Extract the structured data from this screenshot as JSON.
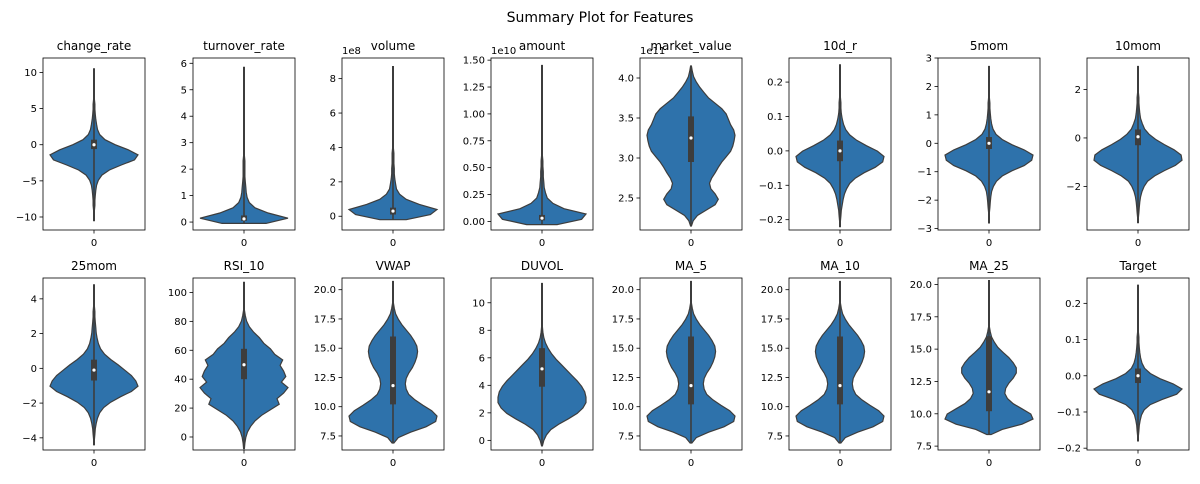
{
  "chart_data": {
    "title": "Summary Plot for Features",
    "type": "violin",
    "panels": [
      {
        "title": "change_rate",
        "ylim": [
          -11.8,
          12.0
        ],
        "yticks": [
          -10,
          -5,
          0,
          5,
          10
        ],
        "tick_labels": [
          "−10",
          "−5",
          "0",
          "5",
          "10"
        ],
        "offset": "",
        "category": "0",
        "range": [
          -10.5,
          10.5
        ],
        "median": 0,
        "q1": -0.6,
        "q3": 0.7,
        "kde": [
          0.01,
          0.01,
          0.01,
          0.02,
          0.02,
          0.03,
          0.04,
          0.06,
          0.1,
          0.18,
          0.35,
          0.62,
          0.92,
          1.0,
          0.78,
          0.48,
          0.25,
          0.13,
          0.08,
          0.06,
          0.04,
          0.03,
          0.02,
          0.02,
          0.01,
          0.01,
          0.01,
          0.01,
          0.01,
          0.01,
          0.01
        ]
      },
      {
        "title": "turnover_rate",
        "ylim": [
          -0.3,
          6.2
        ],
        "yticks": [
          0,
          1,
          2,
          3,
          4,
          5,
          6
        ],
        "tick_labels": [
          "0",
          "1",
          "2",
          "3",
          "4",
          "5",
          "6"
        ],
        "offset": "",
        "category": "0",
        "range": [
          -0.05,
          5.85
        ],
        "median": 0.12,
        "q1": 0.05,
        "q3": 0.25,
        "kde": [
          0.5,
          1.0,
          0.55,
          0.25,
          0.12,
          0.07,
          0.05,
          0.04,
          0.03,
          0.02,
          0.02,
          0.02,
          0.02,
          0.01,
          0.01,
          0.01,
          0.01,
          0.01,
          0.01,
          0.01,
          0.01,
          0.01,
          0.01,
          0.01,
          0.01,
          0.01,
          0.01,
          0.01,
          0.01,
          0.01,
          0.01
        ]
      },
      {
        "title": "volume",
        "ylim": [
          -0.8,
          9.2
        ],
        "yticks": [
          0,
          2,
          4,
          6,
          8
        ],
        "tick_labels": [
          "0",
          "2",
          "4",
          "6",
          "8"
        ],
        "offset": "1e8",
        "category": "0",
        "range": [
          -0.2,
          8.7
        ],
        "median": 0.3,
        "q1": 0.1,
        "q3": 0.5,
        "kde": [
          0.3,
          0.85,
          1.0,
          0.6,
          0.3,
          0.15,
          0.08,
          0.06,
          0.04,
          0.03,
          0.03,
          0.02,
          0.02,
          0.02,
          0.01,
          0.01,
          0.01,
          0.01,
          0.01,
          0.01,
          0.01,
          0.01,
          0.01,
          0.01,
          0.01,
          0.01,
          0.01,
          0.01,
          0.01,
          0.01,
          0.01
        ]
      },
      {
        "title": "amount",
        "ylim": [
          -0.08,
          1.52
        ],
        "yticks": [
          0.0,
          0.25,
          0.5,
          0.75,
          1.0,
          1.25,
          1.5
        ],
        "tick_labels": [
          "0.00",
          "0.25",
          "0.50",
          "0.75",
          "1.00",
          "1.25",
          "1.50"
        ],
        "offset": "1e10",
        "category": "0",
        "range": [
          -0.03,
          1.45
        ],
        "median": 0.03,
        "q1": 0.01,
        "q3": 0.06,
        "kde": [
          0.35,
          0.9,
          1.0,
          0.5,
          0.25,
          0.12,
          0.08,
          0.05,
          0.04,
          0.03,
          0.03,
          0.02,
          0.02,
          0.01,
          0.01,
          0.01,
          0.01,
          0.01,
          0.01,
          0.01,
          0.01,
          0.01,
          0.01,
          0.01,
          0.01,
          0.01,
          0.01,
          0.01,
          0.01,
          0.01,
          0.01
        ]
      },
      {
        "title": "market_value",
        "ylim": [
          2.1,
          4.25
        ],
        "yticks": [
          2.5,
          3.0,
          3.5,
          4.0
        ],
        "tick_labels": [
          "2.5",
          "3.0",
          "3.5",
          "4.0"
        ],
        "offset": "1e11",
        "category": "0",
        "range": [
          2.15,
          4.15
        ],
        "median": 3.25,
        "q1": 2.95,
        "q3": 3.52,
        "kde": [
          0.01,
          0.05,
          0.15,
          0.35,
          0.55,
          0.62,
          0.55,
          0.45,
          0.42,
          0.47,
          0.55,
          0.62,
          0.7,
          0.8,
          0.9,
          0.95,
          0.98,
          1.0,
          0.97,
          0.9,
          0.85,
          0.8,
          0.7,
          0.55,
          0.4,
          0.3,
          0.2,
          0.12,
          0.06,
          0.03,
          0.01
        ]
      },
      {
        "title": "10d_r",
        "ylim": [
          -0.23,
          0.27
        ],
        "yticks": [
          -0.2,
          -0.1,
          0.0,
          0.1,
          0.2
        ],
        "tick_labels": [
          "−0.2",
          "−0.1",
          "0.0",
          "0.1",
          "0.2"
        ],
        "offset": "",
        "category": "0",
        "range": [
          -0.22,
          0.25
        ],
        "median": 0.0,
        "q1": -0.03,
        "q3": 0.03,
        "kde": [
          0.01,
          0.01,
          0.02,
          0.03,
          0.05,
          0.07,
          0.1,
          0.15,
          0.22,
          0.35,
          0.55,
          0.8,
          0.97,
          1.0,
          0.85,
          0.6,
          0.38,
          0.22,
          0.13,
          0.08,
          0.05,
          0.03,
          0.02,
          0.02,
          0.01,
          0.01,
          0.01,
          0.01,
          0.01,
          0.01,
          0.01
        ]
      },
      {
        "title": "5mom",
        "ylim": [
          -3.05,
          3.0
        ],
        "yticks": [
          -3,
          -2,
          -1,
          0,
          1,
          2,
          3
        ],
        "tick_labels": [
          "−3",
          "−2",
          "−1",
          "0",
          "1",
          "2",
          "3"
        ],
        "offset": "",
        "category": "0",
        "range": [
          -2.8,
          2.7
        ],
        "median": 0.0,
        "q1": -0.2,
        "q3": 0.22,
        "kde": [
          0.01,
          0.01,
          0.01,
          0.02,
          0.03,
          0.04,
          0.06,
          0.1,
          0.17,
          0.3,
          0.52,
          0.8,
          0.97,
          1.0,
          0.8,
          0.52,
          0.3,
          0.16,
          0.09,
          0.06,
          0.04,
          0.03,
          0.02,
          0.02,
          0.01,
          0.01,
          0.01,
          0.01,
          0.01,
          0.01,
          0.01
        ]
      },
      {
        "title": "10mom",
        "ylim": [
          -3.8,
          3.3
        ],
        "yticks": [
          -2,
          0,
          2
        ],
        "tick_labels": [
          "−2",
          "0",
          "2"
        ],
        "offset": "",
        "category": "0",
        "range": [
          -3.5,
          2.95
        ],
        "median": 0.05,
        "q1": -0.3,
        "q3": 0.35,
        "kde": [
          0.01,
          0.01,
          0.02,
          0.03,
          0.04,
          0.06,
          0.09,
          0.14,
          0.22,
          0.38,
          0.6,
          0.85,
          1.0,
          0.98,
          0.82,
          0.6,
          0.4,
          0.25,
          0.15,
          0.1,
          0.06,
          0.04,
          0.03,
          0.02,
          0.02,
          0.01,
          0.01,
          0.01,
          0.01,
          0.01,
          0.01
        ]
      },
      {
        "title": "25mom",
        "ylim": [
          -4.7,
          5.2
        ],
        "yticks": [
          -4,
          -2,
          0,
          2,
          4
        ],
        "tick_labels": [
          "−4",
          "−2",
          "0",
          "2",
          "4"
        ],
        "offset": "",
        "category": "0",
        "range": [
          -4.4,
          4.8
        ],
        "median": -0.1,
        "q1": -0.7,
        "q3": 0.5,
        "kde": [
          0.01,
          0.01,
          0.02,
          0.03,
          0.05,
          0.08,
          0.13,
          0.22,
          0.38,
          0.6,
          0.85,
          1.0,
          0.95,
          0.85,
          0.7,
          0.55,
          0.38,
          0.24,
          0.15,
          0.1,
          0.07,
          0.05,
          0.04,
          0.03,
          0.02,
          0.02,
          0.01,
          0.01,
          0.01,
          0.01,
          0.01
        ]
      },
      {
        "title": "RSI_10",
        "ylim": [
          -9,
          110
        ],
        "yticks": [
          0,
          20,
          40,
          60,
          80,
          100
        ],
        "tick_labels": [
          "0",
          "20",
          "40",
          "60",
          "80",
          "100"
        ],
        "offset": "",
        "category": "0",
        "range": [
          -8,
          107
        ],
        "median": 50,
        "q1": 40,
        "q3": 61,
        "kde": [
          0.01,
          0.02,
          0.04,
          0.08,
          0.15,
          0.25,
          0.4,
          0.6,
          0.8,
          0.75,
          0.9,
          1.0,
          0.85,
          0.95,
          0.9,
          0.82,
          0.88,
          0.7,
          0.6,
          0.45,
          0.35,
          0.22,
          0.12,
          0.06,
          0.03,
          0.01,
          0.01,
          0.01,
          0.01,
          0.01,
          0.01
        ]
      },
      {
        "title": "VWAP",
        "ylim": [
          6.3,
          21.0
        ],
        "yticks": [
          7.5,
          10.0,
          12.5,
          15.0,
          17.5,
          20.0
        ],
        "tick_labels": [
          "7.5",
          "10.0",
          "12.5",
          "15.0",
          "17.5",
          "20.0"
        ],
        "offset": "",
        "category": "0",
        "range": [
          6.9,
          20.7
        ],
        "median": 11.8,
        "q1": 10.2,
        "q3": 16.0,
        "kde": [
          0.02,
          0.12,
          0.4,
          0.75,
          0.97,
          1.0,
          0.88,
          0.68,
          0.5,
          0.36,
          0.3,
          0.28,
          0.3,
          0.36,
          0.44,
          0.5,
          0.54,
          0.56,
          0.54,
          0.48,
          0.4,
          0.3,
          0.2,
          0.12,
          0.06,
          0.03,
          0.01,
          0.01,
          0.01,
          0.01,
          0.01
        ]
      },
      {
        "title": "DUVOL",
        "ylim": [
          -0.7,
          11.8
        ],
        "yticks": [
          0,
          2,
          4,
          6,
          8,
          10
        ],
        "tick_labels": [
          "0",
          "2",
          "4",
          "6",
          "8",
          "10"
        ],
        "offset": "",
        "category": "0",
        "range": [
          -0.4,
          11.4
        ],
        "median": 5.2,
        "q1": 3.9,
        "q3": 6.7,
        "kde": [
          0.01,
          0.04,
          0.1,
          0.2,
          0.38,
          0.6,
          0.8,
          0.93,
          1.0,
          1.0,
          0.97,
          0.9,
          0.8,
          0.68,
          0.56,
          0.44,
          0.32,
          0.22,
          0.14,
          0.08,
          0.04,
          0.02,
          0.01,
          0.01,
          0.01,
          0.01,
          0.01,
          0.01,
          0.01,
          0.01,
          0.01
        ]
      },
      {
        "title": "MA_5",
        "ylim": [
          6.3,
          21.0
        ],
        "yticks": [
          7.5,
          10.0,
          12.5,
          15.0,
          17.5,
          20.0
        ],
        "tick_labels": [
          "7.5",
          "10.0",
          "12.5",
          "15.0",
          "17.5",
          "20.0"
        ],
        "offset": "",
        "category": "0",
        "range": [
          6.9,
          20.7
        ],
        "median": 11.8,
        "q1": 10.2,
        "q3": 16.0,
        "kde": [
          0.02,
          0.12,
          0.4,
          0.75,
          0.97,
          1.0,
          0.88,
          0.68,
          0.5,
          0.36,
          0.3,
          0.28,
          0.3,
          0.36,
          0.44,
          0.5,
          0.54,
          0.56,
          0.54,
          0.48,
          0.4,
          0.3,
          0.2,
          0.12,
          0.06,
          0.03,
          0.01,
          0.01,
          0.01,
          0.01,
          0.01
        ]
      },
      {
        "title": "MA_10",
        "ylim": [
          6.3,
          21.0
        ],
        "yticks": [
          7.5,
          10.0,
          12.5,
          15.0,
          17.5,
          20.0
        ],
        "tick_labels": [
          "7.5",
          "10.0",
          "12.5",
          "15.0",
          "17.5",
          "20.0"
        ],
        "offset": "",
        "category": "0",
        "range": [
          6.9,
          20.7
        ],
        "median": 11.8,
        "q1": 10.2,
        "q3": 16.0,
        "kde": [
          0.02,
          0.12,
          0.4,
          0.75,
          0.97,
          1.0,
          0.88,
          0.68,
          0.5,
          0.36,
          0.3,
          0.28,
          0.3,
          0.36,
          0.44,
          0.5,
          0.54,
          0.56,
          0.54,
          0.48,
          0.4,
          0.3,
          0.2,
          0.12,
          0.06,
          0.03,
          0.01,
          0.01,
          0.01,
          0.01,
          0.01
        ]
      },
      {
        "title": "MA_25",
        "ylim": [
          7.2,
          20.5
        ],
        "yticks": [
          7.5,
          10.0,
          12.5,
          15.0,
          17.5,
          20.0
        ],
        "tick_labels": [
          "7.5",
          "10.0",
          "12.5",
          "15.0",
          "17.5",
          "20.0"
        ],
        "offset": "",
        "category": "0",
        "range": [
          8.4,
          20.3
        ],
        "median": 11.7,
        "q1": 10.2,
        "q3": 16.0,
        "kde": [
          0.05,
          0.3,
          0.75,
          1.0,
          0.95,
          0.75,
          0.55,
          0.42,
          0.36,
          0.38,
          0.45,
          0.55,
          0.62,
          0.62,
          0.55,
          0.45,
          0.32,
          0.2,
          0.12,
          0.06,
          0.03,
          0.01,
          0.01,
          0.01,
          0.01,
          0.01,
          0.01,
          0.01,
          0.01,
          0.01,
          0.01
        ]
      },
      {
        "title": "Target",
        "ylim": [
          -0.205,
          0.27
        ],
        "yticks": [
          -0.2,
          -0.1,
          0.0,
          0.1,
          0.2
        ],
        "tick_labels": [
          "−0.2",
          "−0.1",
          "0.0",
          "0.1",
          "0.2"
        ],
        "offset": "",
        "category": "0",
        "range": [
          -0.18,
          0.25
        ],
        "median": 0.0,
        "q1": -0.02,
        "q3": 0.02,
        "kde": [
          0.01,
          0.01,
          0.02,
          0.03,
          0.05,
          0.08,
          0.14,
          0.28,
          0.55,
          0.88,
          1.0,
          0.8,
          0.5,
          0.28,
          0.15,
          0.09,
          0.06,
          0.04,
          0.03,
          0.02,
          0.02,
          0.01,
          0.01,
          0.01,
          0.01,
          0.01,
          0.01,
          0.01,
          0.01,
          0.01,
          0.01
        ]
      }
    ]
  },
  "colors": {
    "violin_fill": "#2e72ab",
    "violin_edge": "#3d3d3d",
    "box": "#3d3d3d",
    "median": "#ffffff"
  }
}
